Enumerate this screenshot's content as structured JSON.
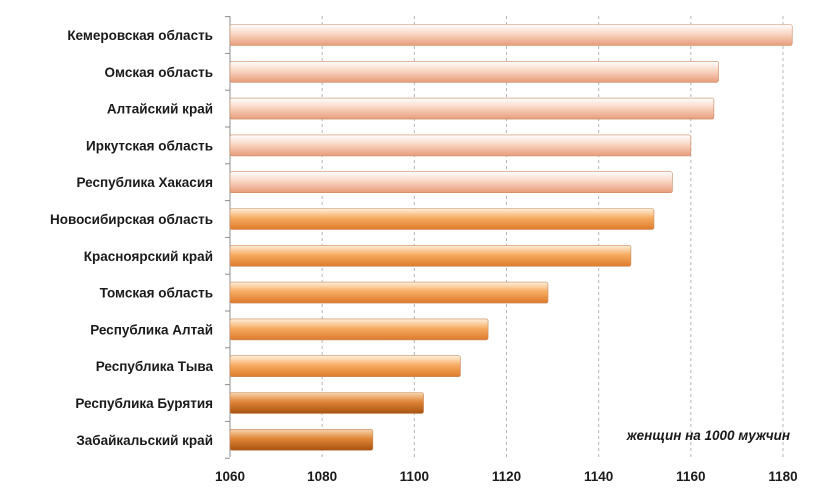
{
  "chart_data": {
    "type": "bar",
    "orientation": "horizontal",
    "categories": [
      "Кемеровская область",
      "Омская область",
      "Алтайский край",
      "Иркутская область",
      "Республика Хакасия",
      "Новосибирская область",
      "Красноярский край",
      "Томская область",
      "Республика Алтай",
      "Республика Тыва",
      "Республика Бурятия",
      "Забайкальский край"
    ],
    "values": [
      1182,
      1166,
      1165,
      1160,
      1156,
      1152,
      1147,
      1129,
      1116,
      1110,
      1102,
      1091
    ],
    "xlim": [
      1060,
      1180
    ],
    "xticks": [
      1060,
      1080,
      1100,
      1120,
      1140,
      1160,
      1180
    ],
    "unit_label": "женщин на 1000 мужчин",
    "grid": "vertical dashed",
    "legend": "none",
    "colors": {
      "light_bar": "#f0b595",
      "mid_bar": "#f4a05a",
      "dark_bar": "#c8691f"
    }
  }
}
